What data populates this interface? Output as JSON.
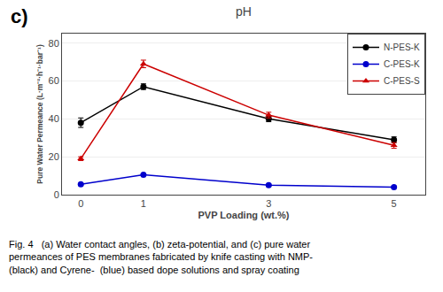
{
  "chart_data": {
    "type": "line",
    "title": "pH",
    "xlabel": "PVP Loading (wt.%)",
    "ylabel": "Pure Water Permeance (L·m⁻²·h⁻¹·bar⁻¹)",
    "annotations": [
      "c)",
      "Fig. 4   (a) Water contact angles, (b) zeta-potential, and (c) pure water",
      "permeances of PES membranes fabricated by knife casting with NMP-",
      "(black) and Cyrene-  (blue) based dope solutions and spray coating"
    ],
    "x": [
      0,
      1,
      3,
      5
    ],
    "series": [
      {
        "name": "N-PES-K",
        "color": "#000000",
        "marker": "circle",
        "values": [
          38,
          57,
          40,
          29
        ],
        "yerr": [
          2.5,
          1.5,
          1.5,
          1.5
        ]
      },
      {
        "name": "C-PES-K",
        "color": "#0000cc",
        "marker": "circle",
        "values": [
          5.5,
          10.5,
          5,
          4
        ],
        "yerr": [
          0.5,
          0.5,
          0.5,
          0.5
        ]
      },
      {
        "name": "C-PES-S",
        "color": "#cc0000",
        "marker": "triangle",
        "values": [
          19,
          69,
          42,
          26
        ],
        "yerr": [
          1.0,
          2.0,
          1.5,
          1.5
        ]
      }
    ],
    "xlim": [
      -0.3,
      5.5
    ],
    "xticks": [
      0,
      1,
      3,
      5
    ],
    "ylim": [
      0,
      85
    ],
    "yticks": [
      0,
      20,
      40,
      60,
      80
    ],
    "grid": "y",
    "legend": "upper right"
  }
}
